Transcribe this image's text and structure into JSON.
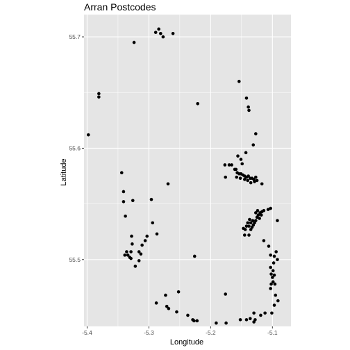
{
  "chart_data": {
    "type": "scatter",
    "title": "Arran Postcodes",
    "xlabel": "Longitude",
    "ylabel": "Latitude",
    "xlim": [
      -5.405,
      -5.07
    ],
    "ylim": [
      55.44,
      55.72
    ],
    "x_ticks": [
      -5.4,
      -5.3,
      -5.2,
      -5.1
    ],
    "x_tick_labels": [
      "-5.4",
      "-5.3",
      "-5.2",
      "-5.1"
    ],
    "y_ticks": [
      55.5,
      55.6,
      55.7
    ],
    "y_tick_labels": [
      "55.5",
      "55.6",
      "55.7"
    ],
    "grid": true,
    "colors": {
      "panel": "#e5e5e5",
      "grid_major": "#ffffff",
      "point": "#000000"
    },
    "points": [
      [
        -5.324,
        55.695
      ],
      [
        -5.289,
        55.704
      ],
      [
        -5.284,
        55.707
      ],
      [
        -5.281,
        55.703
      ],
      [
        -5.277,
        55.7
      ],
      [
        -5.261,
        55.703
      ],
      [
        -5.381,
        55.649
      ],
      [
        -5.381,
        55.646
      ],
      [
        -5.398,
        55.612
      ],
      [
        -5.221,
        55.64
      ],
      [
        -5.154,
        55.66
      ],
      [
        -5.142,
        55.645
      ],
      [
        -5.139,
        55.637
      ],
      [
        -5.138,
        55.634
      ],
      [
        -5.127,
        55.613
      ],
      [
        -5.131,
        55.603
      ],
      [
        -5.143,
        55.596
      ],
      [
        -5.151,
        55.59
      ],
      [
        -5.156,
        55.593
      ],
      [
        -5.149,
        55.586
      ],
      [
        -5.161,
        55.581
      ],
      [
        -5.17,
        55.585
      ],
      [
        -5.177,
        55.585
      ],
      [
        -5.176,
        55.574
      ],
      [
        -5.166,
        55.585
      ],
      [
        -5.159,
        55.581
      ],
      [
        -5.157,
        55.578
      ],
      [
        -5.154,
        55.577
      ],
      [
        -5.151,
        55.577
      ],
      [
        -5.148,
        55.576
      ],
      [
        -5.145,
        55.575
      ],
      [
        -5.142,
        55.574
      ],
      [
        -5.139,
        55.575
      ],
      [
        -5.136,
        55.573
      ],
      [
        -5.133,
        55.573
      ],
      [
        -5.13,
        55.572
      ],
      [
        -5.127,
        55.574
      ],
      [
        -5.152,
        55.573
      ],
      [
        -5.14,
        55.571
      ],
      [
        -5.135,
        55.569
      ],
      [
        -5.129,
        55.57
      ],
      [
        -5.145,
        55.572
      ],
      [
        -5.125,
        55.571
      ],
      [
        -5.117,
        55.568
      ],
      [
        -5.158,
        55.574
      ],
      [
        -5.344,
        55.578
      ],
      [
        -5.269,
        55.568
      ],
      [
        -5.341,
        55.561
      ],
      [
        -5.326,
        55.553
      ],
      [
        -5.341,
        55.552
      ],
      [
        -5.296,
        55.554
      ],
      [
        -5.338,
        55.539
      ],
      [
        -5.294,
        55.533
      ],
      [
        -5.287,
        55.523
      ],
      [
        -5.303,
        55.521
      ],
      [
        -5.306,
        55.517
      ],
      [
        -5.311,
        55.513
      ],
      [
        -5.328,
        55.521
      ],
      [
        -5.327,
        55.514
      ],
      [
        -5.329,
        55.507
      ],
      [
        -5.336,
        55.507
      ],
      [
        -5.339,
        55.504
      ],
      [
        -5.334,
        55.504
      ],
      [
        -5.331,
        55.502
      ],
      [
        -5.329,
        55.501
      ],
      [
        -5.316,
        55.507
      ],
      [
        -5.313,
        55.505
      ],
      [
        -5.316,
        55.499
      ],
      [
        -5.322,
        55.494
      ],
      [
        -5.226,
        55.503
      ],
      [
        -5.103,
        55.546
      ],
      [
        -5.107,
        55.545
      ],
      [
        -5.114,
        55.544
      ],
      [
        -5.117,
        55.543
      ],
      [
        -5.12,
        55.542
      ],
      [
        -5.123,
        55.54
      ],
      [
        -5.125,
        55.538
      ],
      [
        -5.127,
        55.535
      ],
      [
        -5.129,
        55.533
      ],
      [
        -5.131,
        55.531
      ],
      [
        -5.133,
        55.529
      ],
      [
        -5.135,
        55.527
      ],
      [
        -5.138,
        55.53
      ],
      [
        -5.135,
        55.533
      ],
      [
        -5.132,
        55.535
      ],
      [
        -5.137,
        55.536
      ],
      [
        -5.14,
        55.533
      ],
      [
        -5.142,
        55.53
      ],
      [
        -5.144,
        55.527
      ],
      [
        -5.121,
        55.537
      ],
      [
        -5.118,
        55.54
      ],
      [
        -5.127,
        55.542
      ],
      [
        -5.124,
        55.544
      ],
      [
        -5.145,
        55.522
      ],
      [
        -5.138,
        55.522
      ],
      [
        -5.147,
        55.528
      ],
      [
        -5.092,
        55.535
      ],
      [
        -5.114,
        55.517
      ],
      [
        -5.106,
        55.512
      ],
      [
        -5.103,
        55.504
      ],
      [
        -5.094,
        55.507
      ],
      [
        -5.097,
        55.503
      ],
      [
        -5.092,
        55.5
      ],
      [
        -5.098,
        55.497
      ],
      [
        -5.103,
        55.493
      ],
      [
        -5.099,
        55.49
      ],
      [
        -5.102,
        55.487
      ],
      [
        -5.1,
        55.484
      ],
      [
        -5.097,
        55.486
      ],
      [
        -5.099,
        55.48
      ],
      [
        -5.102,
        55.478
      ],
      [
        -5.096,
        55.478
      ],
      [
        -5.103,
        55.474
      ],
      [
        -5.095,
        55.468
      ],
      [
        -5.097,
        55.459
      ],
      [
        -5.101,
        55.452
      ],
      [
        -5.112,
        55.452
      ],
      [
        -5.119,
        55.45
      ],
      [
        -5.13,
        55.452
      ],
      [
        -5.091,
        55.463
      ],
      [
        -5.13,
        55.444
      ],
      [
        -5.128,
        55.446
      ],
      [
        -5.136,
        55.447
      ],
      [
        -5.142,
        55.446
      ],
      [
        -5.152,
        55.446
      ],
      [
        -5.175,
        55.443
      ],
      [
        -5.191,
        55.443
      ],
      [
        -5.176,
        55.469
      ],
      [
        -5.222,
        55.445
      ],
      [
        -5.227,
        55.445
      ],
      [
        -5.229,
        55.446
      ],
      [
        -5.237,
        55.45
      ],
      [
        -5.255,
        55.453
      ],
      [
        -5.268,
        55.456
      ],
      [
        -5.271,
        55.458
      ],
      [
        -5.273,
        55.468
      ],
      [
        -5.288,
        55.461
      ],
      [
        -5.252,
        55.471
      ]
    ]
  }
}
